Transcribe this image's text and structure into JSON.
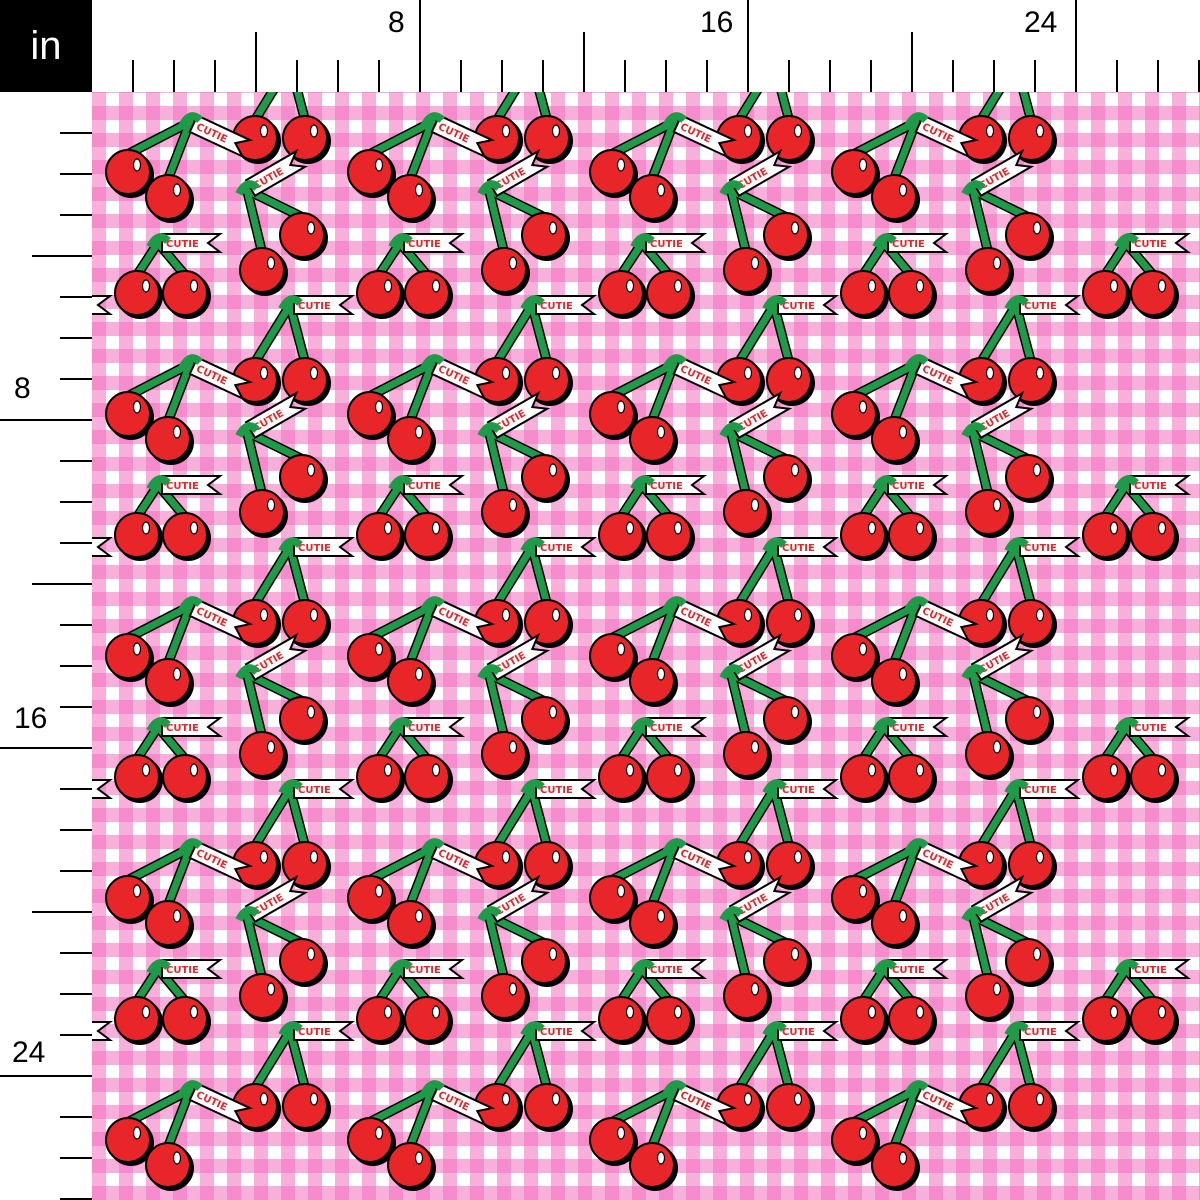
{
  "ruler": {
    "unit": "in",
    "top_labels": [
      "8",
      "16",
      "24"
    ],
    "left_labels": [
      "8",
      "16",
      "24"
    ]
  },
  "fabric": {
    "pattern": "pink gingham with cherries",
    "banner_text": "CUTIE",
    "colors": {
      "gingham_pink": "#f36ebe",
      "background": "#ffffff",
      "cherry_red": "#e8262a",
      "stem_green": "#1f9a48",
      "outline": "#000000"
    }
  }
}
